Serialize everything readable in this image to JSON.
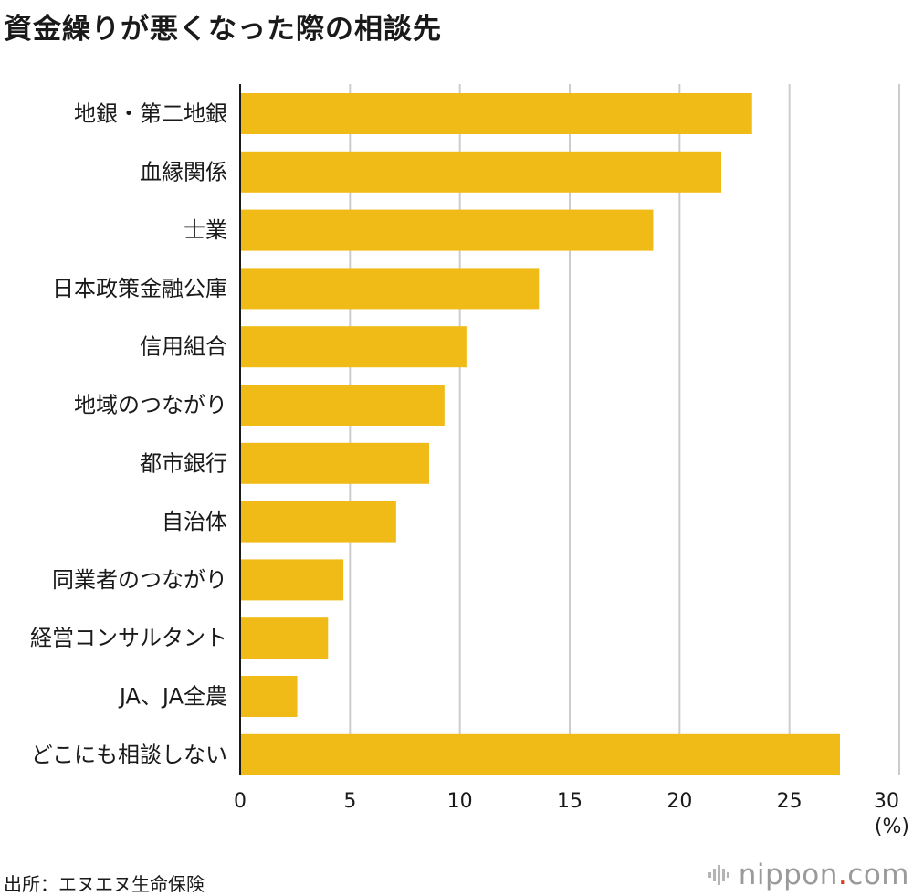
{
  "header": {
    "title": "資金繰りが悪くなった際の相談先"
  },
  "chart_data": {
    "type": "bar",
    "orientation": "horizontal",
    "title": "資金繰りが悪くなった際の相談先",
    "categories": [
      "地銀・第二地銀",
      "血縁関係",
      "士業",
      "日本政策金融公庫",
      "信用組合",
      "地域のつながり",
      "都市銀行",
      "自治体",
      "同業者のつながり",
      "経営コンサルタント",
      "JA、JA全農",
      "どこにも相談しない"
    ],
    "values": [
      23.3,
      21.9,
      18.8,
      13.6,
      10.3,
      9.3,
      8.6,
      7.1,
      4.7,
      4.0,
      2.6,
      27.3
    ],
    "xlim": [
      0,
      30
    ],
    "xticks": [
      0,
      5,
      10,
      15,
      20,
      25,
      30
    ],
    "xlabel": "(%)",
    "grid": true,
    "bar_color": "#f0bb16",
    "grid_color": "#cccccc"
  },
  "footer": {
    "source": "出所：エヌエヌ生命保険",
    "brand": "nippon",
    "brand_dot": ".",
    "brand_tld": "com",
    "brand_dot_color": "#e03a26"
  }
}
